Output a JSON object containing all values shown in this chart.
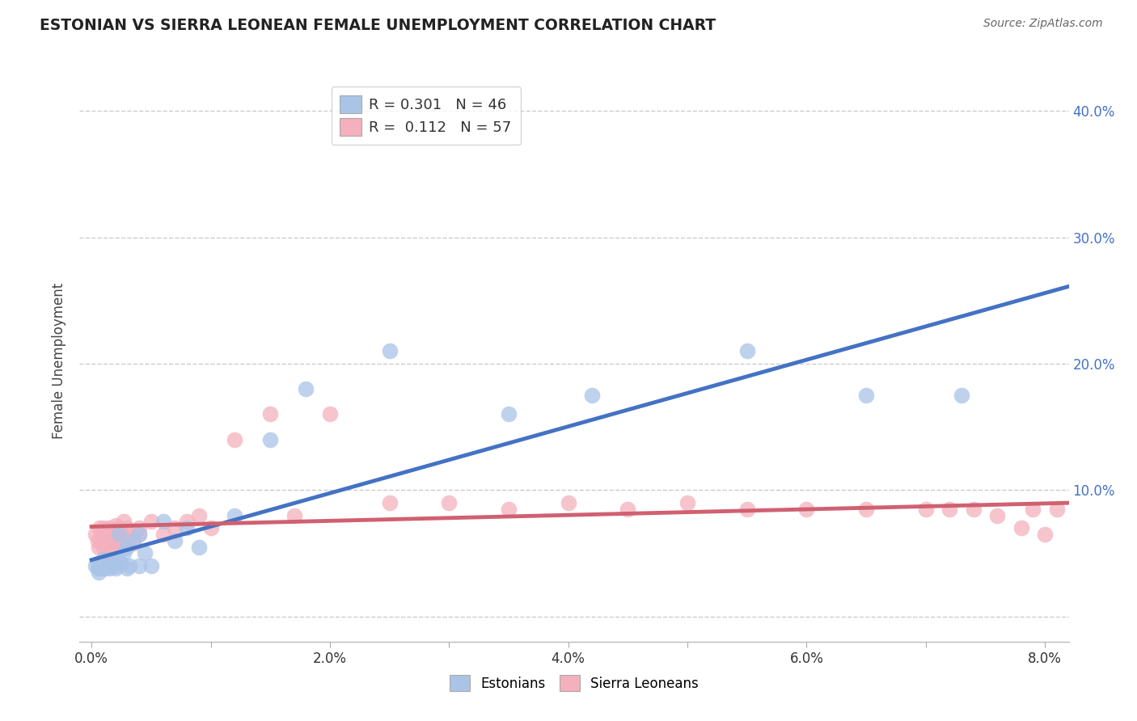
{
  "title": "ESTONIAN VS SIERRA LEONEAN FEMALE UNEMPLOYMENT CORRELATION CHART",
  "source_text": "Source: ZipAtlas.com",
  "ylabel": "Female Unemployment",
  "xlim": [
    -0.001,
    0.082
  ],
  "ylim": [
    -0.02,
    0.425
  ],
  "xtick_pos": [
    0.0,
    0.01,
    0.02,
    0.03,
    0.04,
    0.05,
    0.06,
    0.07,
    0.08
  ],
  "xtick_labels": [
    "0.0%",
    "",
    "2.0%",
    "",
    "4.0%",
    "",
    "6.0%",
    "",
    "8.0%"
  ],
  "ytick_pos": [
    0.0,
    0.1,
    0.2,
    0.3,
    0.4
  ],
  "ytick_labels": [
    "",
    "10.0%",
    "20.0%",
    "30.0%",
    "40.0%"
  ],
  "grid_color": "#cccccc",
  "background_color": "#ffffff",
  "estonian_fill_color": "#aac4e8",
  "estonian_line_color": "#4472c4",
  "estonian_R": 0.301,
  "estonian_N": 46,
  "sierra_fill_color": "#f4b0bc",
  "sierra_line_color": "#d06070",
  "sierra_R": 0.112,
  "sierra_N": 57,
  "tick_color": "#4472c4",
  "title_color": "#222222",
  "estonian_x": [
    0.0003,
    0.0005,
    0.0005,
    0.0006,
    0.0007,
    0.0008,
    0.0009,
    0.001,
    0.001,
    0.0011,
    0.0012,
    0.0013,
    0.0014,
    0.0015,
    0.0015,
    0.0016,
    0.0017,
    0.0018,
    0.002,
    0.002,
    0.0021,
    0.0022,
    0.0023,
    0.0025,
    0.0027,
    0.003,
    0.003,
    0.0032,
    0.0035,
    0.004,
    0.004,
    0.0045,
    0.005,
    0.006,
    0.007,
    0.008,
    0.009,
    0.012,
    0.015,
    0.018,
    0.025,
    0.035,
    0.042,
    0.055,
    0.065,
    0.073
  ],
  "estonian_y": [
    0.04,
    0.038,
    0.042,
    0.035,
    0.04,
    0.038,
    0.042,
    0.04,
    0.045,
    0.038,
    0.042,
    0.04,
    0.043,
    0.038,
    0.042,
    0.04,
    0.045,
    0.042,
    0.038,
    0.043,
    0.04,
    0.045,
    0.065,
    0.042,
    0.05,
    0.038,
    0.055,
    0.04,
    0.06,
    0.04,
    0.065,
    0.05,
    0.04,
    0.075,
    0.06,
    0.07,
    0.055,
    0.08,
    0.14,
    0.18,
    0.21,
    0.16,
    0.175,
    0.21,
    0.175,
    0.175
  ],
  "sierra_x": [
    0.0003,
    0.0005,
    0.0006,
    0.0007,
    0.0008,
    0.0009,
    0.001,
    0.001,
    0.0011,
    0.0012,
    0.0013,
    0.0014,
    0.0015,
    0.0015,
    0.0016,
    0.0017,
    0.0018,
    0.002,
    0.002,
    0.0021,
    0.0022,
    0.0023,
    0.0025,
    0.0027,
    0.003,
    0.003,
    0.0032,
    0.0035,
    0.004,
    0.004,
    0.005,
    0.006,
    0.007,
    0.008,
    0.009,
    0.01,
    0.012,
    0.015,
    0.017,
    0.02,
    0.025,
    0.03,
    0.035,
    0.04,
    0.045,
    0.05,
    0.055,
    0.06,
    0.065,
    0.07,
    0.072,
    0.074,
    0.076,
    0.078,
    0.079,
    0.08,
    0.081
  ],
  "sierra_y": [
    0.065,
    0.06,
    0.055,
    0.07,
    0.065,
    0.058,
    0.055,
    0.07,
    0.065,
    0.06,
    0.068,
    0.055,
    0.06,
    0.07,
    0.065,
    0.058,
    0.068,
    0.06,
    0.072,
    0.065,
    0.058,
    0.07,
    0.065,
    0.075,
    0.06,
    0.07,
    0.065,
    0.058,
    0.07,
    0.065,
    0.075,
    0.065,
    0.07,
    0.075,
    0.08,
    0.07,
    0.14,
    0.16,
    0.08,
    0.16,
    0.09,
    0.09,
    0.085,
    0.09,
    0.085,
    0.09,
    0.085,
    0.085,
    0.085,
    0.085,
    0.085,
    0.085,
    0.08,
    0.07,
    0.085,
    0.065,
    0.085
  ]
}
